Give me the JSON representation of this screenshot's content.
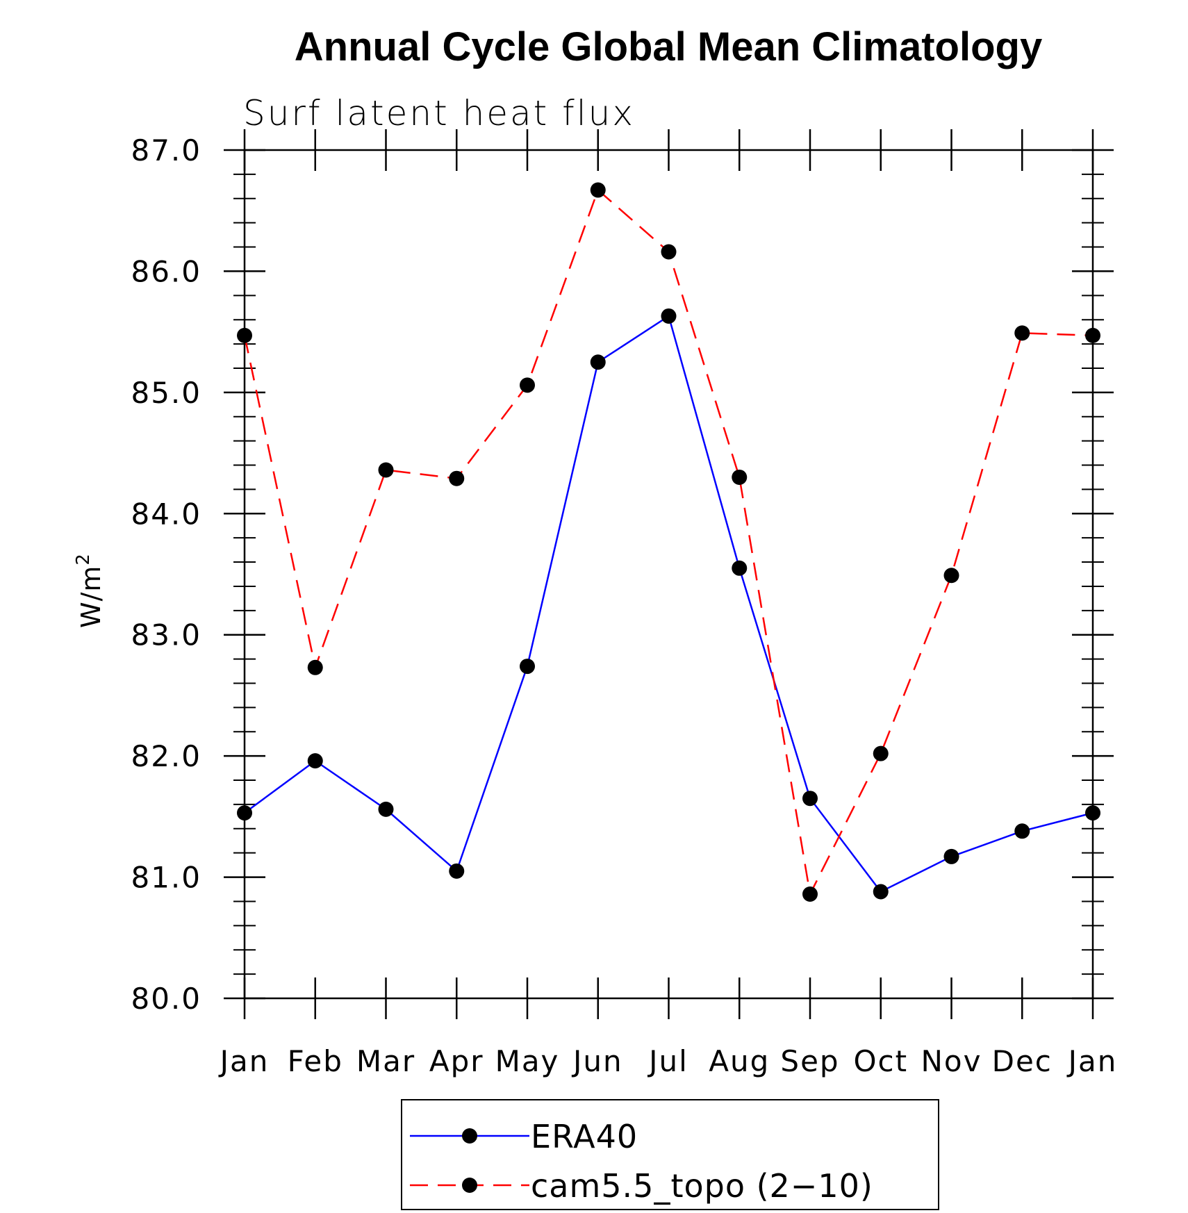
{
  "chart_data": {
    "type": "line",
    "title": "Annual Cycle Global Mean Climatology",
    "subtitle": "Surf latent heat flux",
    "ylabel": "W/m",
    "ylabel_superscript": "2",
    "xlabel": "",
    "ylim": [
      80.0,
      87.0
    ],
    "y_ticks": [
      "80.0",
      "81.0",
      "82.0",
      "83.0",
      "84.0",
      "85.0",
      "86.0",
      "87.0"
    ],
    "categories": [
      "Jan",
      "Feb",
      "Mar",
      "Apr",
      "May",
      "Jun",
      "Jul",
      "Aug",
      "Sep",
      "Oct",
      "Nov",
      "Dec",
      "Jan"
    ],
    "grid": false,
    "legend_position": "bottom-center",
    "series": [
      {
        "name": "ERA40",
        "color": "#0000ff",
        "line_style": "solid",
        "marker": "filled-circle",
        "marker_color": "#000000",
        "values": [
          81.53,
          81.96,
          81.56,
          81.05,
          82.74,
          85.25,
          85.63,
          83.55,
          81.65,
          80.88,
          81.17,
          81.38,
          81.53
        ]
      },
      {
        "name": "cam5.5_topo (2−10)",
        "color": "#ff0000",
        "line_style": "dashed",
        "marker": "filled-circle",
        "marker_color": "#000000",
        "values": [
          85.47,
          82.73,
          84.36,
          84.29,
          85.06,
          86.67,
          86.16,
          84.3,
          80.86,
          82.02,
          83.49,
          85.49,
          85.47
        ]
      }
    ]
  }
}
